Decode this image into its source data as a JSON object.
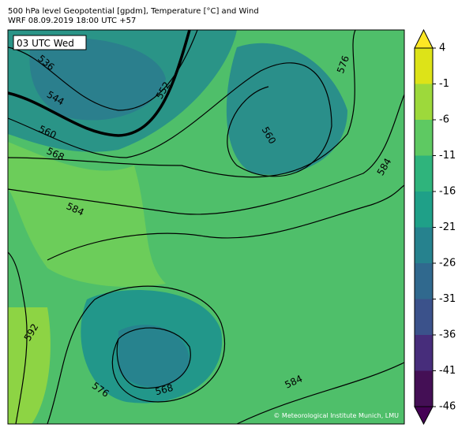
{
  "header": {
    "title": "500 hPa level Geopotential [gpdm], Temperature [°C] and Wind",
    "subtitle": "WRF 08.09.2019 18:00 UTC +57"
  },
  "map": {
    "time_label": "03 UTC Wed",
    "contour_labels": [
      "536",
      "544",
      "552",
      "560",
      "568",
      "584",
      "576",
      "560",
      "584",
      "592",
      "576",
      "568",
      "584"
    ],
    "credit": "© Meteorological Institute Munich, LMU"
  },
  "colorbar": {
    "ticks": [
      4,
      -1,
      -6,
      -11,
      -16,
      -21,
      -26,
      -31,
      -36,
      -41,
      -46
    ],
    "ylim": [
      -46,
      4
    ],
    "colors": [
      "#dde318",
      "#9dd93b",
      "#5ec962",
      "#2fb47c",
      "#1fa088",
      "#26828e",
      "#30698e",
      "#3b528b",
      "#472d7b",
      "#440f55"
    ],
    "over_color": "#fde725",
    "under_color": "#440154"
  }
}
